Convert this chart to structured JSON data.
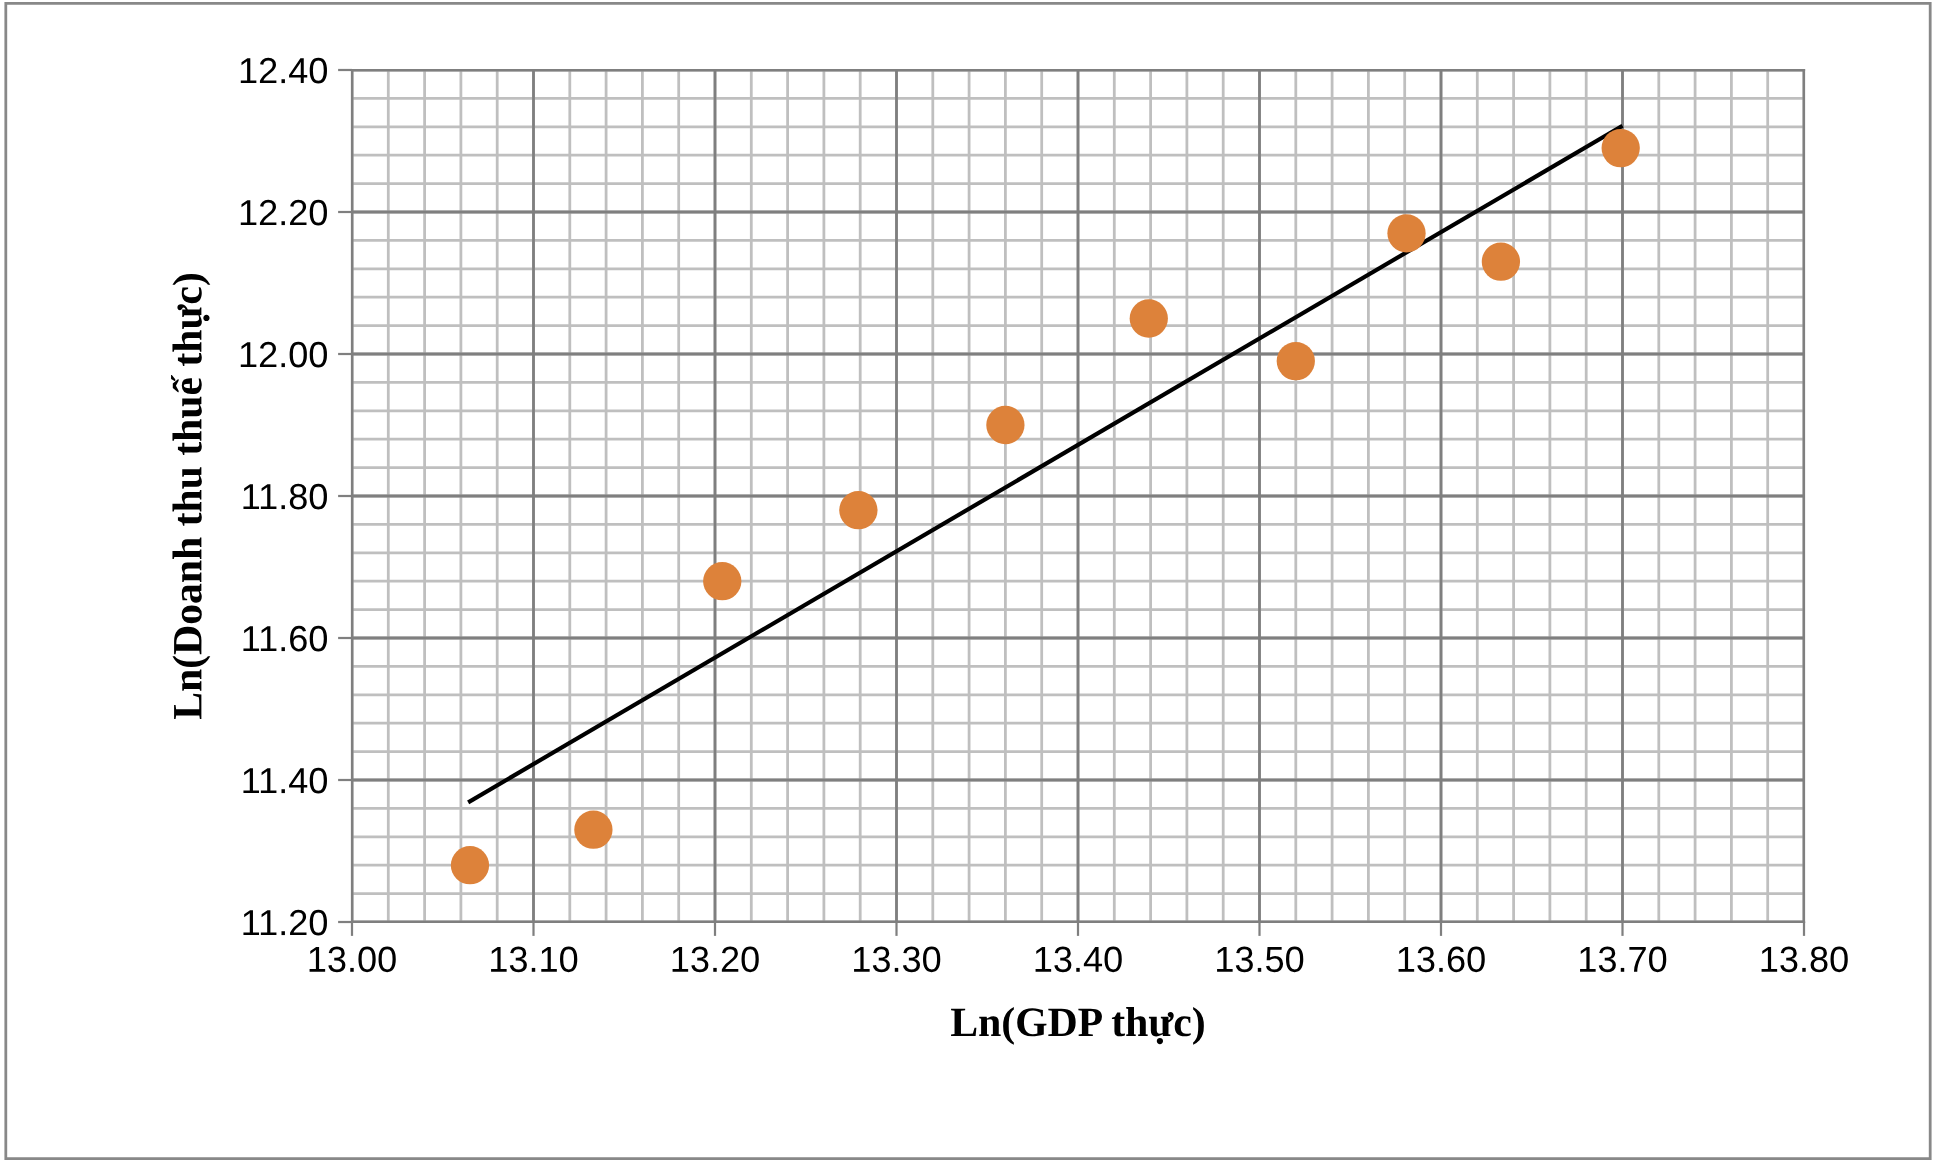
{
  "chart_data": {
    "type": "scatter",
    "xlabel": "Ln(GDP thực)",
    "ylabel": "Ln(Doanh thu thuế thực)",
    "x": [
      13.065,
      13.133,
      13.204,
      13.279,
      13.36,
      13.439,
      13.52,
      13.581,
      13.633,
      13.699
    ],
    "series": [
      {
        "color": "#dd823a",
        "marker": "circle",
        "values": [
          11.28,
          11.33,
          11.68,
          11.78,
          11.9,
          12.05,
          11.99,
          12.17,
          12.13,
          12.29
        ]
      },
      {
        "type": "line",
        "marker": "none",
        "color": "#000000",
        "x": [
          13.065,
          13.699
        ],
        "values": [
          11.37,
          12.32
        ]
      }
    ],
    "xlim": [
      13.0,
      13.8
    ],
    "ylim": [
      11.2,
      12.4
    ],
    "xticks": [
      {
        "value": 13.0,
        "label": "13.00"
      },
      {
        "value": 13.1,
        "label": "13.10"
      },
      {
        "value": 13.2,
        "label": "13.20"
      },
      {
        "value": 13.3,
        "label": "13.30"
      },
      {
        "value": 13.4,
        "label": "13.40"
      },
      {
        "value": 13.5,
        "label": "13.50"
      },
      {
        "value": 13.6,
        "label": "13.60"
      },
      {
        "value": 13.7,
        "label": "13.70"
      },
      {
        "value": 13.8,
        "label": "13.80"
      }
    ],
    "yticks": [
      {
        "value": 11.2,
        "label": "11.20"
      },
      {
        "value": 11.4,
        "label": "11.40"
      },
      {
        "value": 11.6,
        "label": "11.60"
      },
      {
        "value": 11.8,
        "label": "11.80"
      },
      {
        "value": 12.0,
        "label": "12.00"
      },
      {
        "value": 12.2,
        "label": "12.20"
      },
      {
        "value": 12.4,
        "label": "12.40"
      }
    ],
    "grid": true
  }
}
